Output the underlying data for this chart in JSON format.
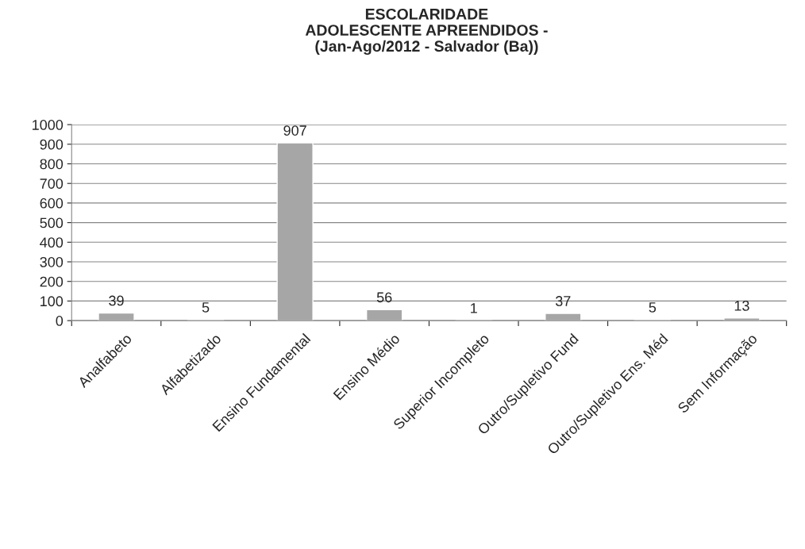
{
  "chart_data": {
    "type": "bar",
    "title": "ESCOLARIDADE\nADOLESCENTE APREENDIDOS -\n(Jan-Ago/2012 - Salvador (Ba))",
    "categories": [
      "Analfabeto",
      "Alfabetizado",
      "Ensino Fundamental",
      "Ensino Médio",
      "Superior Incompleto",
      "Outro/Supletivo Fund",
      "Outro/Supletivo Ens. Méd",
      "Sem Informação"
    ],
    "values": [
      39,
      5,
      907,
      56,
      1,
      37,
      5,
      13
    ],
    "color": "#a6a6a6",
    "ylim": [
      0,
      1000
    ],
    "yticks": [
      0,
      100,
      200,
      300,
      400,
      500,
      600,
      700,
      800,
      900,
      1000
    ],
    "grid": "y",
    "data_labels": true
  }
}
